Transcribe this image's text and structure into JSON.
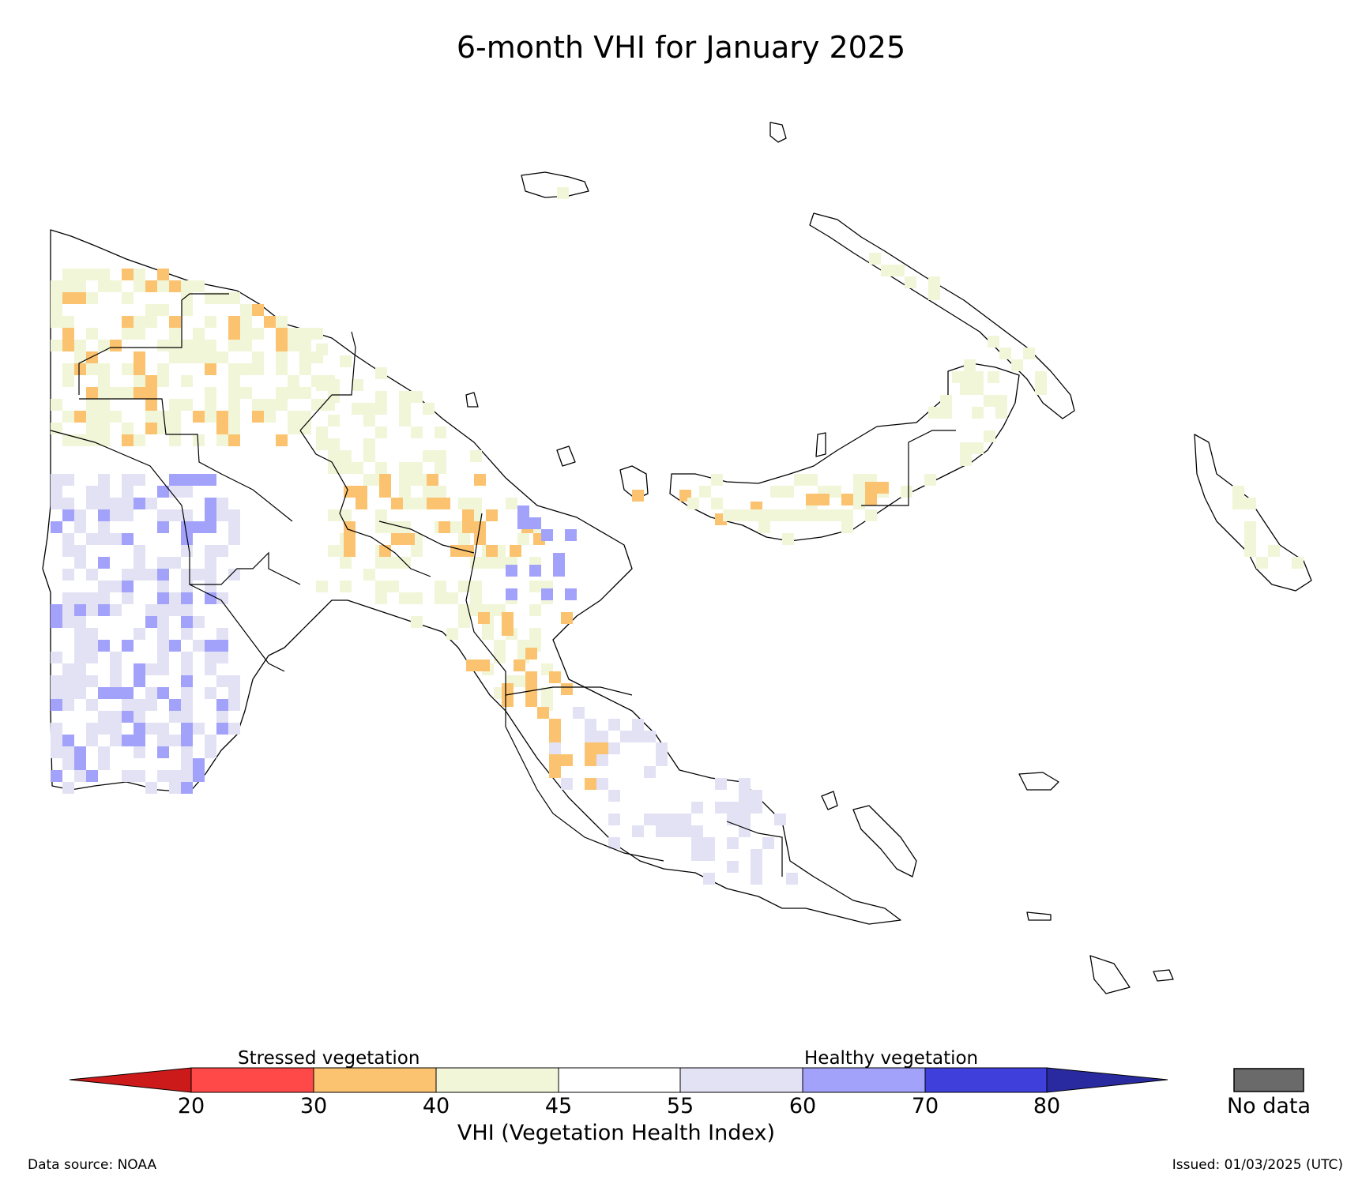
{
  "title": "6-month VHI for January 2025",
  "legend": {
    "stressed_label": "Stressed vegetation",
    "healthy_label": "Healthy vegetation",
    "axis_label": "VHI (Vegetation Health Index)",
    "no_data_label": "No data",
    "ticks": [
      "20",
      "30",
      "40",
      "45",
      "55",
      "60",
      "70",
      "80"
    ],
    "colors": [
      "#cc1a1a",
      "#ff4848",
      "#fbc36f",
      "#f1f6d8",
      "#ffffff",
      "#e3e2f4",
      "#a2a2fb",
      "#3f3fdc",
      "#2a2aa0"
    ],
    "no_data_color": "#6a6a6a"
  },
  "footer": {
    "source": "Data source: NOAA",
    "issued": "Issued: 01/03/2025 (UTC)"
  }
}
